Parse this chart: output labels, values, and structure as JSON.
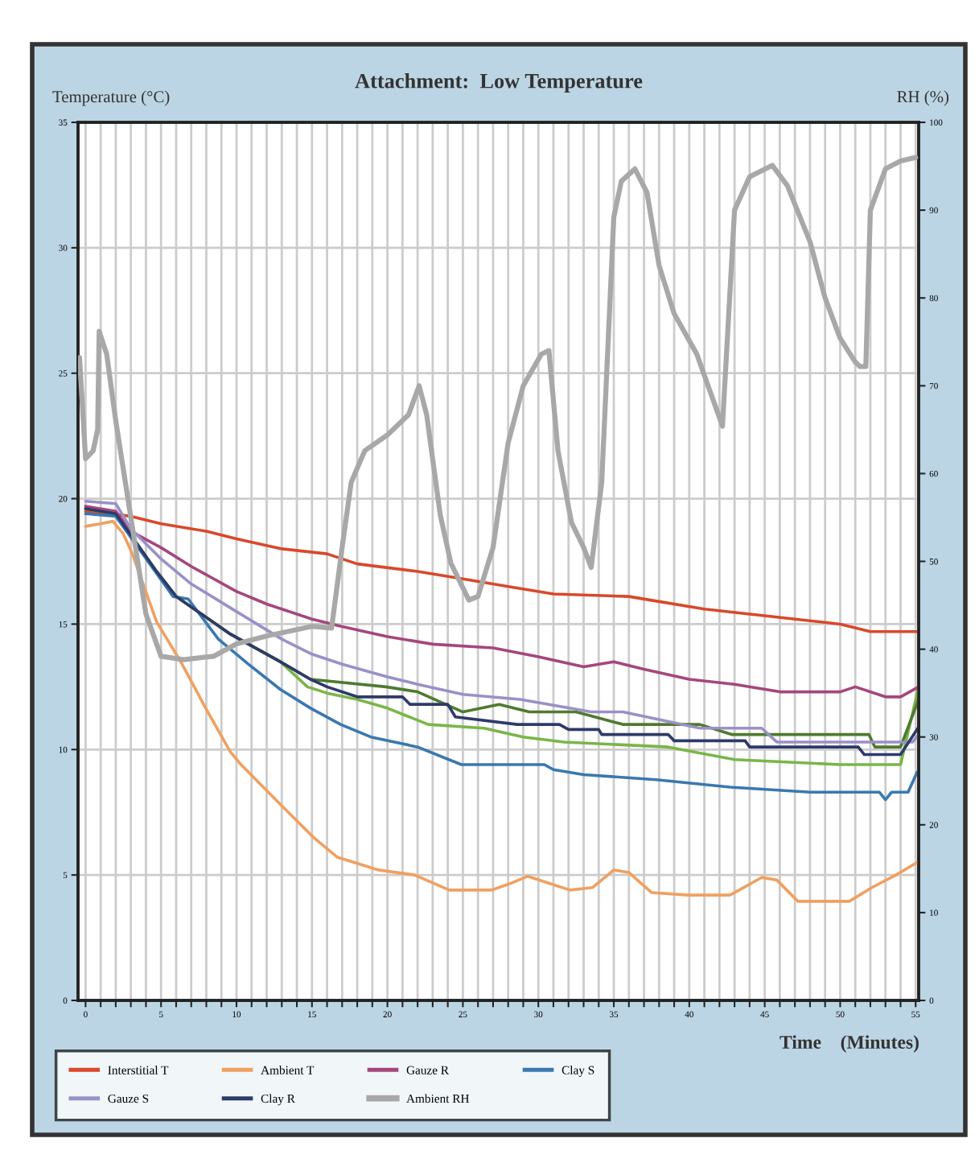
{
  "chart_data": {
    "type": "line",
    "title": "Attachment:  Low Temperature",
    "xlabel": "Time    (Minutes)",
    "ylabel": "Temperature (°C)",
    "y2label": "RH (%)",
    "xlim": [
      -0.5,
      55.2
    ],
    "ylim": [
      0,
      35
    ],
    "yticks": [
      0,
      5,
      10,
      15,
      20,
      25,
      30,
      35
    ],
    "y2lim": [
      0,
      100
    ],
    "y2ticks": [
      0,
      10,
      20,
      30,
      40,
      50,
      60,
      70,
      80,
      90,
      100
    ],
    "xticks": [
      0,
      {
        "value": 1,
        "label": null
      },
      {
        "value": 2,
        "label": null
      },
      {
        "value": 3,
        "label": null
      },
      {
        "value": 4,
        "label": null
      },
      5,
      {
        "value": 6,
        "label": null
      },
      {
        "value": 7,
        "label": null
      },
      {
        "value": 8,
        "label": null
      },
      {
        "value": 9,
        "label": null
      },
      10,
      {
        "value": 11,
        "label": null
      },
      {
        "value": 12,
        "label": null
      },
      {
        "value": 13,
        "label": null
      },
      {
        "value": 14,
        "label": null
      },
      15,
      {
        "value": 16,
        "label": null
      },
      {
        "value": 17,
        "label": null
      },
      {
        "value": 18,
        "label": null
      },
      {
        "value": 19,
        "label": null
      },
      20,
      {
        "value": 21,
        "label": null
      },
      {
        "value": 22,
        "label": null
      },
      {
        "value": 23,
        "label": null
      },
      {
        "value": 24,
        "label": null
      },
      25,
      {
        "value": 26,
        "label": null
      },
      {
        "value": 27,
        "label": null
      },
      {
        "value": 28,
        "label": null
      },
      {
        "value": 29,
        "label": null
      },
      30,
      {
        "value": 31,
        "label": null
      },
      {
        "value": 32,
        "label": null
      },
      {
        "value": 33,
        "label": null
      },
      {
        "value": 34,
        "label": null
      },
      35,
      {
        "value": 36,
        "label": null
      },
      {
        "value": 37,
        "label": null
      },
      {
        "value": 38,
        "label": null
      },
      {
        "value": 39,
        "label": null
      },
      40,
      {
        "value": 41,
        "label": null
      },
      {
        "value": 42,
        "label": null
      },
      {
        "value": 43,
        "label": null
      },
      {
        "value": 44,
        "label": null
      },
      45,
      {
        "value": 46,
        "label": null
      },
      {
        "value": 47,
        "label": null
      },
      {
        "value": 48,
        "label": null
      },
      {
        "value": 49,
        "label": null
      },
      50,
      {
        "value": 51,
        "label": null
      },
      {
        "value": 52,
        "label": null
      },
      {
        "value": 53,
        "label": null
      },
      {
        "value": 54,
        "label": null
      },
      55
    ],
    "grid": true,
    "legend": "bottom left",
    "marker": "none",
    "line_style": "solid",
    "series": [
      {
        "name": "Interstitial T",
        "color": "#d9482b",
        "x": [
          0,
          3,
          5,
          8,
          10,
          13,
          16,
          18,
          22,
          25,
          28,
          31,
          36,
          38,
          41,
          44,
          47,
          50,
          52,
          55.2
        ],
        "values": [
          19.5,
          19.3,
          19.0,
          18.7,
          18.4,
          18.0,
          17.8,
          17.4,
          17.1,
          16.8,
          16.5,
          16.2,
          16.1,
          15.9,
          15.6,
          15.4,
          15.2,
          15.0,
          14.7,
          14.7
        ]
      },
      {
        "color": "#7ab648",
        "x": [
          0,
          2,
          4.7,
          6,
          9.6,
          10.8,
          12.9,
          14.7,
          16,
          18,
          20,
          22.7,
          26.4,
          29,
          31.7,
          38.6,
          43,
          50,
          54,
          55.2
        ],
        "values": [
          19.6,
          19.4,
          17.1,
          16.1,
          14.6,
          14.2,
          13.5,
          12.5,
          12.25,
          12.0,
          11.65,
          11.0,
          10.85,
          10.5,
          10.3,
          10.1,
          9.6,
          9.4,
          9.4,
          12.5
        ]
      },
      {
        "name": "Ambient T",
        "color": "#f0a060",
        "x": [
          0,
          1,
          1.8,
          2.5,
          3.1,
          4.7,
          6.4,
          8.0,
          9.6,
          10.3,
          13.1,
          15.1,
          16.7,
          17.8,
          19.4,
          21.8,
          24.1,
          26.9,
          28.1,
          29.3,
          30.8,
          32.1,
          33.6,
          35,
          36,
          37.5,
          39.9,
          42.7,
          44.8,
          45.8,
          47.2,
          50.6,
          52.1,
          53.7,
          55.1
        ],
        "values": [
          18.9,
          19.0,
          19.1,
          18.6,
          17.8,
          15.1,
          13.4,
          11.6,
          9.9,
          9.4,
          7.7,
          6.5,
          5.7,
          5.5,
          5.2,
          5.0,
          4.4,
          4.4,
          4.65,
          4.95,
          4.65,
          4.4,
          4.5,
          5.2,
          5.1,
          4.3,
          4.2,
          4.2,
          4.9,
          4.8,
          3.95,
          3.95,
          4.5,
          5.0,
          5.5
        ]
      },
      {
        "color": "#4f7a30",
        "x": [
          0,
          2,
          4.7,
          6,
          9.6,
          10.8,
          12.9,
          14.9,
          19.9,
          22,
          25,
          27.4,
          29.4,
          32.5,
          35.6,
          40.7,
          42.8,
          51.9,
          52.3,
          54,
          55.2
        ],
        "values": [
          19.6,
          19.4,
          17.1,
          16.1,
          14.6,
          14.2,
          13.5,
          12.8,
          12.5,
          12.3,
          11.5,
          11.8,
          11.5,
          11.5,
          11.0,
          11.0,
          10.6,
          10.6,
          10.1,
          10.1,
          12.0
        ]
      },
      {
        "name": "Gauze R",
        "color": "#a5467e",
        "x": [
          0,
          2,
          3,
          5,
          7,
          10,
          12,
          15,
          17,
          20,
          23,
          27,
          30,
          33,
          35,
          37,
          40,
          43,
          46,
          50,
          51,
          53,
          54,
          55.2
        ],
        "values": [
          19.7,
          19.5,
          18.7,
          18.05,
          17.3,
          16.3,
          15.8,
          15.2,
          14.9,
          14.5,
          14.2,
          14.05,
          13.7,
          13.3,
          13.5,
          13.2,
          12.8,
          12.6,
          12.3,
          12.3,
          12.5,
          12.1,
          12.1,
          12.5
        ]
      },
      {
        "name": "Clay S",
        "color": "#3a78b0",
        "x": [
          0,
          2,
          5.8,
          6.8,
          8.8,
          10.8,
          12.9,
          14.9,
          16.9,
          18.9,
          22,
          24.9,
          30.4,
          31,
          33,
          37.8,
          42.7,
          48,
          52.6,
          53,
          53.4,
          54.5,
          55.1
        ],
        "values": [
          19.4,
          19.3,
          16.1,
          16.0,
          14.4,
          13.4,
          12.4,
          11.65,
          11.0,
          10.5,
          10.1,
          9.4,
          9.4,
          9.2,
          9.0,
          8.8,
          8.5,
          8.3,
          8.3,
          8.0,
          8.3,
          8.3,
          9.1
        ]
      },
      {
        "name": "Gauze S",
        "color": "#9a90c8",
        "x": [
          0,
          2,
          3,
          5,
          7,
          10,
          13,
          15,
          17,
          20,
          22,
          25,
          28.8,
          33.5,
          35.6,
          40.7,
          44.8,
          45.8,
          54.8,
          55.2
        ],
        "values": [
          19.9,
          19.8,
          18.8,
          17.6,
          16.6,
          15.5,
          14.4,
          13.8,
          13.4,
          12.9,
          12.6,
          12.2,
          12.0,
          11.5,
          11.5,
          10.85,
          10.85,
          10.3,
          10.3,
          10.6
        ]
      },
      {
        "name": "Clay R",
        "color": "#2e3a6a",
        "x": [
          0,
          2,
          4.7,
          6,
          9.6,
          10.8,
          12.9,
          14.9,
          16,
          18,
          21,
          21.5,
          24,
          24.5,
          28.6,
          31.4,
          32,
          34,
          34.2,
          38.6,
          39,
          43.7,
          44,
          51.2,
          51.6,
          54,
          55.2
        ],
        "values": [
          19.6,
          19.4,
          17.1,
          16.1,
          14.6,
          14.2,
          13.5,
          12.8,
          12.5,
          12.1,
          12.1,
          11.8,
          11.8,
          11.3,
          11.0,
          11.0,
          10.8,
          10.8,
          10.6,
          10.6,
          10.35,
          10.35,
          10.1,
          10.1,
          9.8,
          9.8,
          10.9
        ]
      },
      {
        "name": "Ambient RH",
        "color": "#a8a8a8",
        "axis": "y2",
        "x": [
          -0.4,
          0,
          0.5,
          0.8,
          0.9,
          1.4,
          2,
          3,
          4,
          5,
          6.5,
          8.5,
          10,
          12,
          15,
          16.3,
          17,
          17.6,
          18.5,
          20,
          21.4,
          22.1,
          22.6,
          23.5,
          24.2,
          25.4,
          26,
          27,
          28,
          29,
          30.2,
          30.7,
          31.3,
          32.2,
          33,
          33.5,
          34.2,
          35,
          35.5,
          36.4,
          37.2,
          38,
          39,
          40.5,
          42.2,
          43,
          44,
          45.5,
          46.5,
          48,
          49,
          50,
          51,
          51.3,
          51.7,
          52,
          53,
          54,
          55
        ],
        "values": [
          73.2,
          61.7,
          62.6,
          65,
          76.2,
          73.6,
          66,
          55,
          44,
          39.2,
          38.8,
          39.2,
          40.6,
          41.5,
          42.6,
          42.4,
          51.6,
          59,
          62.6,
          64.4,
          66.7,
          70,
          66.7,
          55.3,
          49.8,
          45.6,
          46,
          51.6,
          63.5,
          70,
          73.6,
          74,
          62.6,
          54.4,
          51.6,
          49.3,
          59,
          89.2,
          93.3,
          94.7,
          92,
          83.7,
          78.2,
          73.6,
          65.4,
          90,
          93.8,
          95.1,
          92.8,
          86.4,
          80,
          75.4,
          72.7,
          72.2,
          72.2,
          90,
          94.7,
          95.6,
          96
        ]
      }
    ]
  }
}
